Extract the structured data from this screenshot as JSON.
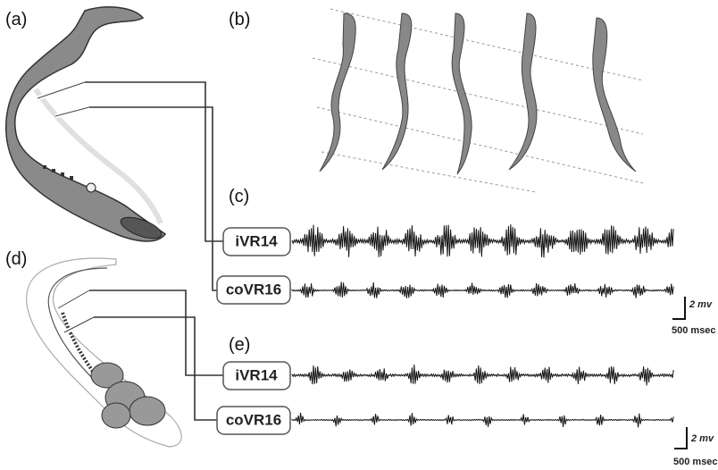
{
  "panels": {
    "a": "(a)",
    "b": "(b)",
    "c": "(c)",
    "d": "(d)",
    "e": "(e)"
  },
  "recordings_c": {
    "ipsilateral": "iVR14",
    "contralateral": "coVR16",
    "scale_amplitude": "2 mv",
    "scale_time": "500 msec"
  },
  "recordings_e": {
    "ipsilateral": "iVR14",
    "contralateral": "coVR16",
    "scale_amplitude": "2 mv",
    "scale_time": "500 msec"
  }
}
